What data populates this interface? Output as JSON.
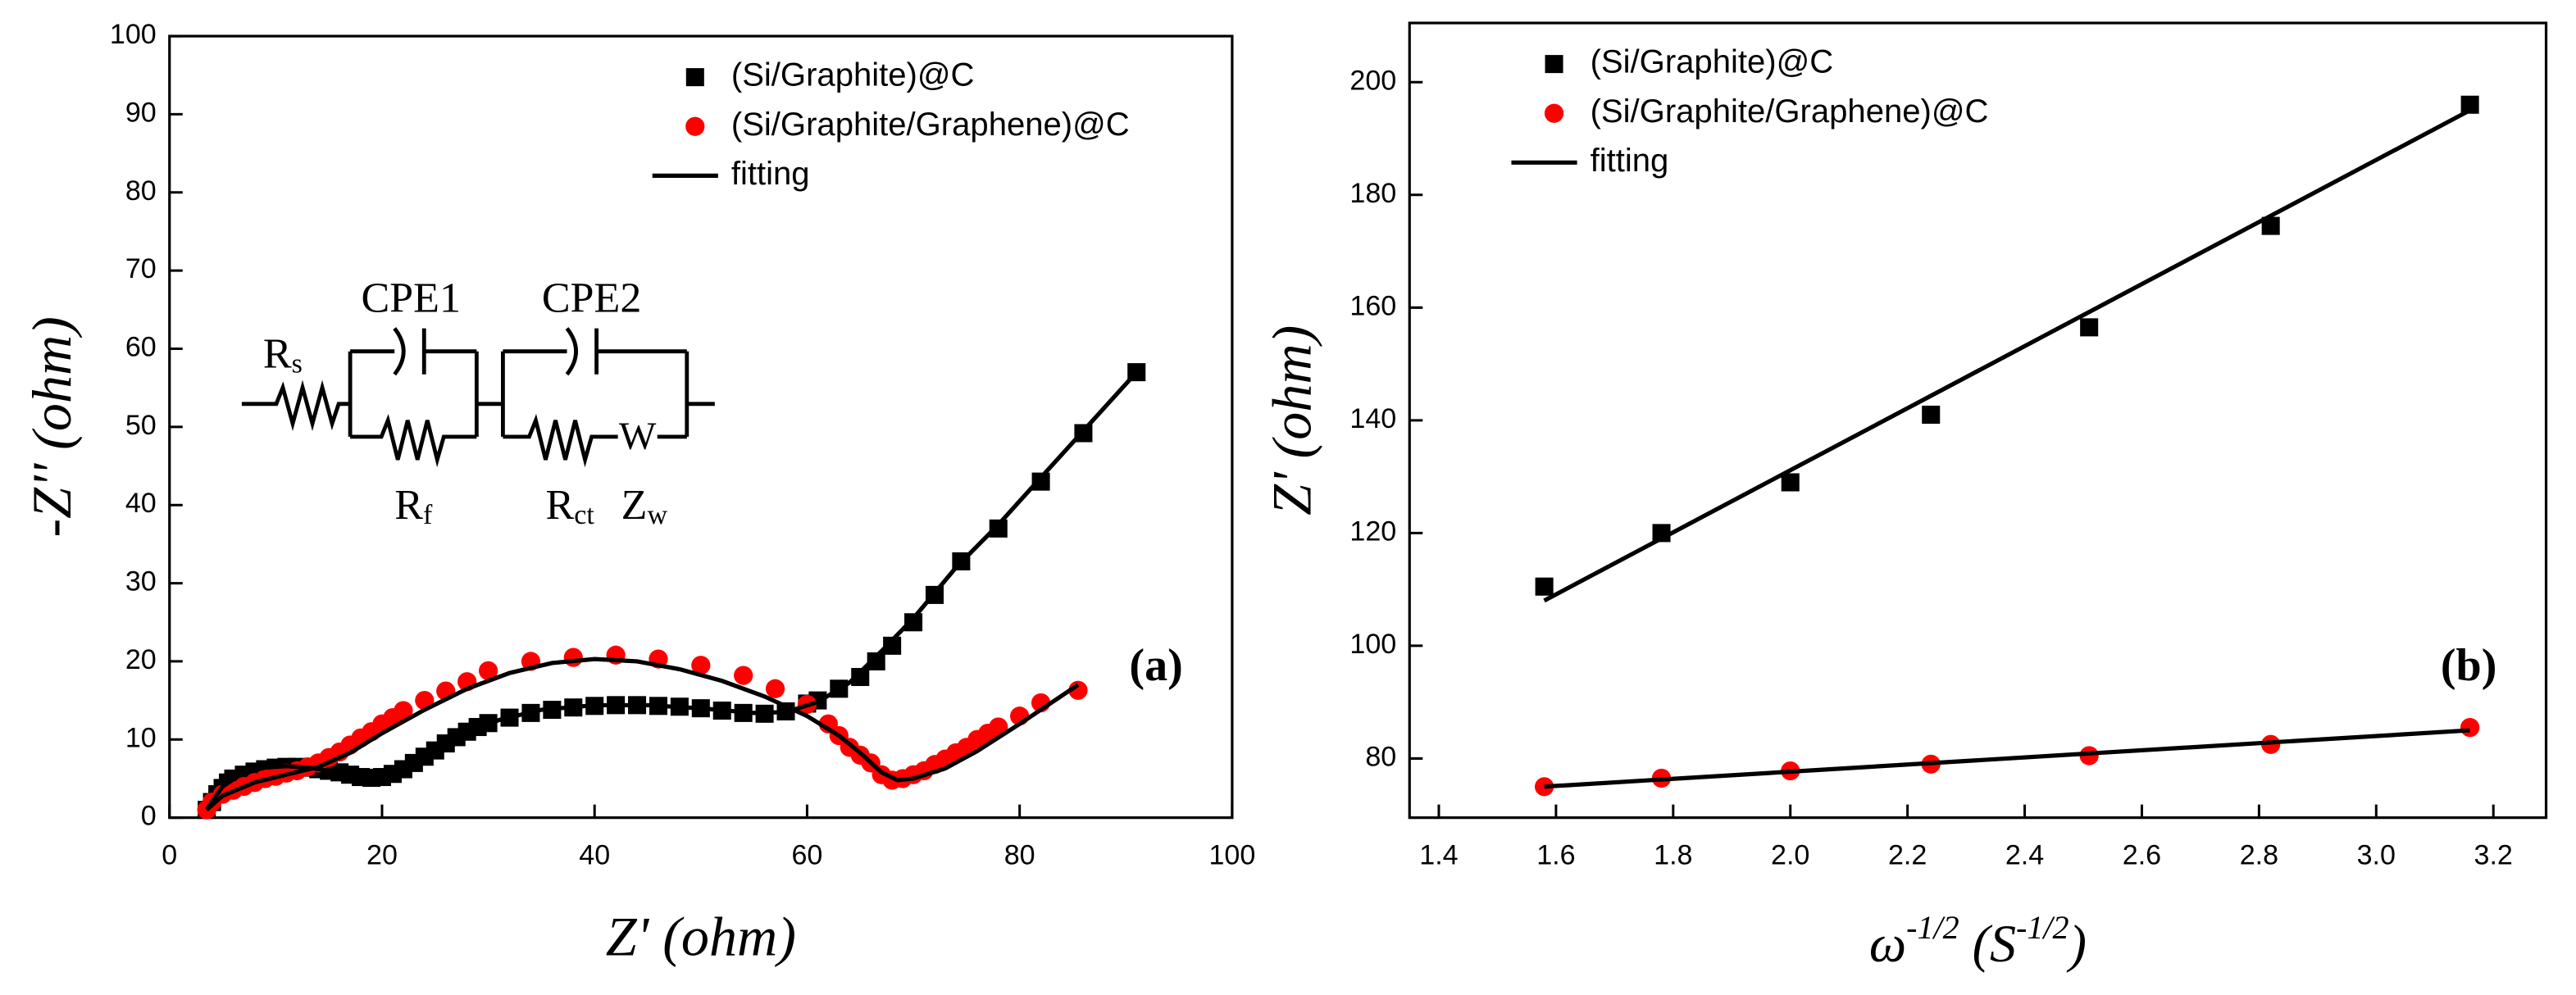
{
  "chart_data": [
    {
      "type": "scatter",
      "panel_label": "(a)",
      "x_label": "Z' (ohm)",
      "y_label": "-Z'' (ohm)",
      "xlim": [
        0,
        100
      ],
      "ylim": [
        0,
        100
      ],
      "xticks": [
        0,
        20,
        40,
        60,
        80,
        100
      ],
      "yticks": [
        0,
        10,
        20,
        30,
        40,
        50,
        60,
        70,
        80,
        90,
        100
      ],
      "legend": "upper right",
      "inset": {
        "labels": [
          "CPE1",
          "CPE2",
          "W"
        ],
        "components": [
          {
            "main": "R",
            "sub": "s"
          },
          {
            "main": "R",
            "sub": "f"
          },
          {
            "main": "R",
            "sub": "ct"
          },
          {
            "main": "Z",
            "sub": "w"
          }
        ]
      },
      "series": [
        {
          "name": "(Si/Graphite)@C",
          "color": "#000000",
          "marker": "square",
          "x": [
            3.5,
            4,
            4.5,
            5,
            5.5,
            6,
            7,
            8,
            9,
            10,
            11,
            12,
            13,
            14,
            15,
            16,
            17,
            18,
            19,
            20,
            21,
            22,
            23,
            24,
            25,
            26,
            27,
            28,
            29,
            30,
            32,
            34,
            36,
            38,
            40,
            42,
            44,
            46,
            48,
            50,
            52,
            54,
            56,
            58,
            60,
            61,
            63,
            65,
            66.5,
            68,
            70,
            72,
            74.5,
            78,
            82,
            86,
            91
          ],
          "values": [
            1,
            2,
            3,
            3.8,
            4.5,
            5,
            5.5,
            5.9,
            6.2,
            6.4,
            6.5,
            6.5,
            6.4,
            6.2,
            6,
            5.8,
            5.5,
            5.2,
            5.1,
            5.2,
            5.6,
            6.2,
            7,
            7.8,
            8.6,
            9.5,
            10.3,
            11,
            11.6,
            12.1,
            12.8,
            13.4,
            13.8,
            14.1,
            14.3,
            14.4,
            14.4,
            14.3,
            14.2,
            14,
            13.7,
            13.4,
            13.3,
            13.6,
            14.6,
            15,
            16.5,
            18,
            20,
            22,
            25,
            28.5,
            32.8,
            37,
            43,
            49.2,
            57
          ]
        },
        {
          "name": "(Si/Graphite/Graphene)@C",
          "color": "#ff0000",
          "marker": "circle",
          "x": [
            3.5,
            4,
            5,
            6,
            7,
            8,
            9,
            10,
            11,
            12,
            13,
            14,
            15,
            16,
            17,
            18,
            19,
            20,
            21,
            22,
            24,
            26,
            28,
            30,
            34,
            38,
            42,
            46,
            50,
            54,
            57,
            60,
            62,
            63,
            64,
            65,
            66,
            67,
            68,
            69,
            70,
            71,
            72,
            73,
            74,
            75,
            76,
            77,
            78,
            80,
            82,
            85.5
          ],
          "values": [
            1,
            2,
            3,
            3.5,
            4,
            4.5,
            5,
            5.3,
            5.7,
            6,
            6.5,
            7,
            7.7,
            8.4,
            9.3,
            10.2,
            11,
            12,
            12.8,
            13.7,
            15,
            16.2,
            17.4,
            18.8,
            20,
            20.5,
            20.8,
            20.3,
            19.5,
            18.2,
            16.5,
            14.5,
            12,
            10.5,
            9,
            8,
            7,
            5.5,
            4.8,
            5,
            5.5,
            6,
            6.8,
            7.5,
            8.3,
            9,
            10,
            10.8,
            11.6,
            13,
            14.7,
            16.3
          ]
        },
        {
          "name": "fitting",
          "color": "#000000",
          "marker": "none",
          "line": true,
          "x": [
            3.5,
            5,
            7,
            9,
            11,
            13,
            15,
            17,
            19,
            21,
            23,
            25,
            28,
            31,
            35,
            40,
            45,
            50,
            55,
            58,
            61,
            64,
            67,
            70,
            74,
            78,
            82,
            86,
            91,
            null,
            3.5,
            5,
            8,
            11,
            14,
            17,
            20,
            24,
            28,
            32,
            36,
            40,
            44,
            48,
            52,
            56,
            60,
            63,
            65,
            67,
            68.5,
            70,
            73,
            76,
            80,
            85.5
          ],
          "values": [
            1,
            4,
            5.8,
            6.4,
            6.6,
            6.4,
            6,
            5.5,
            5.2,
            5.5,
            6.8,
            8.5,
            10.8,
            12.5,
            13.8,
            14.4,
            14.4,
            14,
            13.4,
            13.5,
            14.8,
            17.3,
            21.3,
            25.5,
            32,
            37.5,
            43.5,
            49.5,
            57,
            null,
            1,
            2.8,
            4.5,
            5.5,
            6.5,
            8.3,
            10.8,
            13.8,
            16.5,
            18.5,
            19.8,
            20.3,
            20,
            19,
            17.5,
            15.5,
            13,
            10.5,
            8.3,
            5.8,
            4.8,
            5,
            6.3,
            8.5,
            12,
            17
          ]
        }
      ]
    },
    {
      "type": "scatter",
      "panel_label": "(b)",
      "y_label": "Z' (ohm)",
      "x_label_parts": [
        {
          "text": "ω",
          "sup": false
        },
        {
          "text": "-1/2",
          "sup": true
        },
        {
          "text": " (",
          "sup": false
        },
        {
          "text": "S",
          "sup": false
        },
        {
          "text": "-1/2",
          "sup": true
        },
        {
          "text": ")",
          "sup": false
        }
      ],
      "xlim": [
        1.35,
        3.29
      ],
      "ylim": [
        69.5,
        210.5
      ],
      "xticks": [
        1.4,
        1.6,
        1.8,
        {
          "value": 2,
          "label": "2.0"
        },
        2.2,
        2.4,
        2.6,
        2.8,
        {
          "value": 3,
          "label": "3.0"
        },
        3.2
      ],
      "yticks": [
        80,
        100,
        120,
        140,
        160,
        180,
        200
      ],
      "legend": "upper left",
      "series": [
        {
          "name": "(Si/Graphite)@C",
          "color": "#000000",
          "marker": "square",
          "x": [
            1.58,
            1.78,
            2.0,
            2.24,
            2.51,
            2.82,
            3.16
          ],
          "values": [
            110.5,
            120,
            129,
            141,
            156.5,
            174.5,
            196
          ]
        },
        {
          "name": "(Si/Graphite/Graphene)@C",
          "color": "#ff0000",
          "marker": "circle",
          "x": [
            1.58,
            1.78,
            2.0,
            2.24,
            2.51,
            2.82,
            3.16
          ],
          "values": [
            75,
            76.5,
            77.8,
            79,
            80.5,
            82.5,
            85.5
          ]
        },
        {
          "name": "fitting",
          "color": "#000000",
          "marker": "none",
          "line": true,
          "x": [
            1.58,
            3.16,
            null,
            1.58,
            3.16
          ],
          "values": [
            108,
            195,
            null,
            75,
            85
          ]
        }
      ]
    }
  ]
}
